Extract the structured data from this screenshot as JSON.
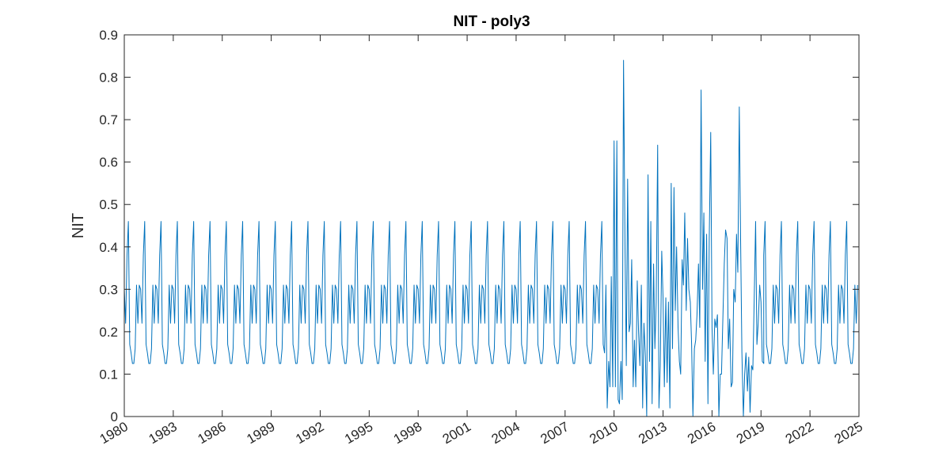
{
  "chart_data": {
    "type": "line",
    "title": "NIT - poly3",
    "xlabel": "",
    "ylabel": "NIT",
    "xlim": [
      1980,
      2025
    ],
    "ylim": [
      0,
      0.9
    ],
    "grid": false,
    "x_ticks": [
      "1980",
      "1983",
      "1986",
      "1989",
      "1992",
      "1995",
      "1998",
      "2001",
      "2004",
      "2007",
      "2010",
      "2013",
      "2016",
      "2019",
      "2022",
      "2025"
    ],
    "y_ticks": [
      "0",
      "0.1",
      "0.2",
      "0.3",
      "0.4",
      "0.5",
      "0.6",
      "0.7",
      "0.8",
      "0.9"
    ],
    "series": [
      {
        "color": "#0072BD",
        "seasonal_pattern_monthly": [
          0.3,
          0.22,
          0.38,
          0.46,
          0.17,
          0.15,
          0.125,
          0.125,
          0.16,
          0.31,
          0.22,
          0.31
        ],
        "seasonal_pattern_period": [
          "1980-01",
          "2009-06"
        ],
        "points": [
          [
            2009.5,
            0.31
          ],
          [
            2009.58,
            0.02
          ],
          [
            2009.67,
            0.13
          ],
          [
            2009.75,
            0.07
          ],
          [
            2009.83,
            0.33
          ],
          [
            2009.92,
            0.07
          ],
          [
            2010.0,
            0.65
          ],
          [
            2010.08,
            0.07
          ],
          [
            2010.17,
            0.65
          ],
          [
            2010.25,
            0.04
          ],
          [
            2010.33,
            0.03
          ],
          [
            2010.42,
            0.13
          ],
          [
            2010.5,
            0.04
          ],
          [
            2010.58,
            0.84
          ],
          [
            2010.67,
            0.4
          ],
          [
            2010.75,
            0.12
          ],
          [
            2010.83,
            0.56
          ],
          [
            2010.92,
            0.2
          ],
          [
            2011.0,
            0.22
          ],
          [
            2011.08,
            0.37
          ],
          [
            2011.17,
            0.07
          ],
          [
            2011.25,
            0.18
          ],
          [
            2011.33,
            0.07
          ],
          [
            2011.42,
            0.32
          ],
          [
            2011.5,
            0.2
          ],
          [
            2011.58,
            0.12
          ],
          [
            2011.67,
            0.31
          ],
          [
            2011.75,
            0.02
          ],
          [
            2011.83,
            0.22
          ],
          [
            2011.92,
            0.14
          ],
          [
            2012.0,
            0.0
          ],
          [
            2012.08,
            0.57
          ],
          [
            2012.17,
            0.13
          ],
          [
            2012.25,
            0.46
          ],
          [
            2012.33,
            0.03
          ],
          [
            2012.42,
            0.36
          ],
          [
            2012.5,
            0.16
          ],
          [
            2012.58,
            0.27
          ],
          [
            2012.67,
            0.64
          ],
          [
            2012.75,
            0.02
          ],
          [
            2012.83,
            0.12
          ],
          [
            2012.92,
            0.39
          ],
          [
            2013.0,
            0.28
          ],
          [
            2013.08,
            0.07
          ],
          [
            2013.17,
            0.28
          ],
          [
            2013.25,
            0.08
          ],
          [
            2013.33,
            0.27
          ],
          [
            2013.42,
            0.02
          ],
          [
            2013.5,
            0.55
          ],
          [
            2013.58,
            0.16
          ],
          [
            2013.67,
            0.54
          ],
          [
            2013.75,
            0.25
          ],
          [
            2013.83,
            0.4
          ],
          [
            2013.92,
            0.21
          ],
          [
            2014.0,
            0.13
          ],
          [
            2014.08,
            0.1
          ],
          [
            2014.17,
            0.37
          ],
          [
            2014.25,
            0.31
          ],
          [
            2014.33,
            0.48
          ],
          [
            2014.42,
            0.25
          ],
          [
            2014.5,
            0.42
          ],
          [
            2014.58,
            0.3
          ],
          [
            2014.67,
            0.27
          ],
          [
            2014.75,
            0.17
          ],
          [
            2014.83,
            0.0
          ],
          [
            2014.92,
            0.16
          ],
          [
            2015.0,
            0.18
          ],
          [
            2015.08,
            0.24
          ],
          [
            2015.17,
            0.36
          ],
          [
            2015.25,
            0.21
          ],
          [
            2015.33,
            0.77
          ],
          [
            2015.42,
            0.3
          ],
          [
            2015.5,
            0.48
          ],
          [
            2015.58,
            0.13
          ],
          [
            2015.67,
            0.43
          ],
          [
            2015.75,
            0.03
          ],
          [
            2015.83,
            0.42
          ],
          [
            2015.92,
            0.67
          ],
          [
            2016.0,
            0.21
          ],
          [
            2016.08,
            0.1
          ],
          [
            2016.17,
            0.23
          ],
          [
            2016.25,
            0.21
          ],
          [
            2016.33,
            0.24
          ],
          [
            2016.42,
            0.0
          ],
          [
            2016.5,
            0.1
          ],
          [
            2016.58,
            0.1
          ],
          [
            2016.67,
            0.24
          ],
          [
            2016.75,
            0.36
          ],
          [
            2016.83,
            0.44
          ],
          [
            2016.92,
            0.42
          ],
          [
            2017.0,
            0.16
          ],
          [
            2017.08,
            0.23
          ],
          [
            2017.17,
            0.07
          ],
          [
            2017.25,
            0.08
          ],
          [
            2017.33,
            0.3
          ],
          [
            2017.42,
            0.27
          ],
          [
            2017.5,
            0.43
          ],
          [
            2017.58,
            0.34
          ],
          [
            2017.67,
            0.73
          ],
          [
            2017.75,
            0.42
          ],
          [
            2017.83,
            0.15
          ],
          [
            2017.92,
            0.0
          ],
          [
            2018.0,
            0.1
          ],
          [
            2018.08,
            0.15
          ],
          [
            2018.17,
            0.06
          ],
          [
            2018.25,
            0.14
          ],
          [
            2018.33,
            0.01
          ],
          [
            2018.42,
            0.12
          ],
          [
            2018.5,
            0.11
          ],
          [
            2018.58,
            0.27
          ],
          [
            2018.67,
            0.46
          ],
          [
            2018.75,
            0.17
          ],
          [
            2018.83,
            0.22
          ],
          [
            2018.92,
            0.31
          ],
          [
            2019.0,
            0.27
          ],
          [
            2019.08,
            0.13
          ],
          [
            2019.17,
            0.125
          ]
        ],
        "seasonal_pattern_tail": [
          "2019-03",
          "2024-12"
        ]
      }
    ]
  }
}
